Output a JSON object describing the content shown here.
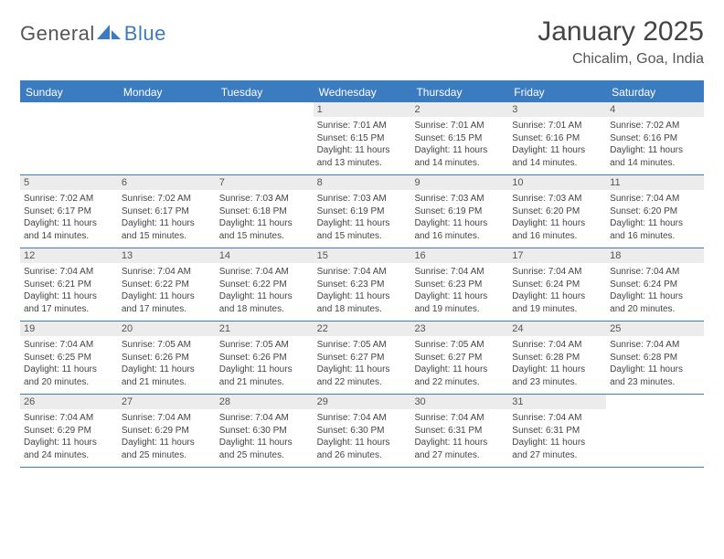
{
  "logo": {
    "text1": "General",
    "text2": "Blue"
  },
  "title": "January 2025",
  "location": "Chicalim, Goa, India",
  "colors": {
    "accent": "#3b7bbf",
    "header_bg": "#3b7bbf",
    "daynum_bg": "#ececec"
  },
  "day_headers": [
    "Sunday",
    "Monday",
    "Tuesday",
    "Wednesday",
    "Thursday",
    "Friday",
    "Saturday"
  ],
  "weeks": [
    [
      {
        "n": "",
        "lines": [
          "",
          "",
          "",
          ""
        ]
      },
      {
        "n": "",
        "lines": [
          "",
          "",
          "",
          ""
        ]
      },
      {
        "n": "",
        "lines": [
          "",
          "",
          "",
          ""
        ]
      },
      {
        "n": "1",
        "lines": [
          "Sunrise: 7:01 AM",
          "Sunset: 6:15 PM",
          "Daylight: 11 hours",
          "and 13 minutes."
        ]
      },
      {
        "n": "2",
        "lines": [
          "Sunrise: 7:01 AM",
          "Sunset: 6:15 PM",
          "Daylight: 11 hours",
          "and 14 minutes."
        ]
      },
      {
        "n": "3",
        "lines": [
          "Sunrise: 7:01 AM",
          "Sunset: 6:16 PM",
          "Daylight: 11 hours",
          "and 14 minutes."
        ]
      },
      {
        "n": "4",
        "lines": [
          "Sunrise: 7:02 AM",
          "Sunset: 6:16 PM",
          "Daylight: 11 hours",
          "and 14 minutes."
        ]
      }
    ],
    [
      {
        "n": "5",
        "lines": [
          "Sunrise: 7:02 AM",
          "Sunset: 6:17 PM",
          "Daylight: 11 hours",
          "and 14 minutes."
        ]
      },
      {
        "n": "6",
        "lines": [
          "Sunrise: 7:02 AM",
          "Sunset: 6:17 PM",
          "Daylight: 11 hours",
          "and 15 minutes."
        ]
      },
      {
        "n": "7",
        "lines": [
          "Sunrise: 7:03 AM",
          "Sunset: 6:18 PM",
          "Daylight: 11 hours",
          "and 15 minutes."
        ]
      },
      {
        "n": "8",
        "lines": [
          "Sunrise: 7:03 AM",
          "Sunset: 6:19 PM",
          "Daylight: 11 hours",
          "and 15 minutes."
        ]
      },
      {
        "n": "9",
        "lines": [
          "Sunrise: 7:03 AM",
          "Sunset: 6:19 PM",
          "Daylight: 11 hours",
          "and 16 minutes."
        ]
      },
      {
        "n": "10",
        "lines": [
          "Sunrise: 7:03 AM",
          "Sunset: 6:20 PM",
          "Daylight: 11 hours",
          "and 16 minutes."
        ]
      },
      {
        "n": "11",
        "lines": [
          "Sunrise: 7:04 AM",
          "Sunset: 6:20 PM",
          "Daylight: 11 hours",
          "and 16 minutes."
        ]
      }
    ],
    [
      {
        "n": "12",
        "lines": [
          "Sunrise: 7:04 AM",
          "Sunset: 6:21 PM",
          "Daylight: 11 hours",
          "and 17 minutes."
        ]
      },
      {
        "n": "13",
        "lines": [
          "Sunrise: 7:04 AM",
          "Sunset: 6:22 PM",
          "Daylight: 11 hours",
          "and 17 minutes."
        ]
      },
      {
        "n": "14",
        "lines": [
          "Sunrise: 7:04 AM",
          "Sunset: 6:22 PM",
          "Daylight: 11 hours",
          "and 18 minutes."
        ]
      },
      {
        "n": "15",
        "lines": [
          "Sunrise: 7:04 AM",
          "Sunset: 6:23 PM",
          "Daylight: 11 hours",
          "and 18 minutes."
        ]
      },
      {
        "n": "16",
        "lines": [
          "Sunrise: 7:04 AM",
          "Sunset: 6:23 PM",
          "Daylight: 11 hours",
          "and 19 minutes."
        ]
      },
      {
        "n": "17",
        "lines": [
          "Sunrise: 7:04 AM",
          "Sunset: 6:24 PM",
          "Daylight: 11 hours",
          "and 19 minutes."
        ]
      },
      {
        "n": "18",
        "lines": [
          "Sunrise: 7:04 AM",
          "Sunset: 6:24 PM",
          "Daylight: 11 hours",
          "and 20 minutes."
        ]
      }
    ],
    [
      {
        "n": "19",
        "lines": [
          "Sunrise: 7:04 AM",
          "Sunset: 6:25 PM",
          "Daylight: 11 hours",
          "and 20 minutes."
        ]
      },
      {
        "n": "20",
        "lines": [
          "Sunrise: 7:05 AM",
          "Sunset: 6:26 PM",
          "Daylight: 11 hours",
          "and 21 minutes."
        ]
      },
      {
        "n": "21",
        "lines": [
          "Sunrise: 7:05 AM",
          "Sunset: 6:26 PM",
          "Daylight: 11 hours",
          "and 21 minutes."
        ]
      },
      {
        "n": "22",
        "lines": [
          "Sunrise: 7:05 AM",
          "Sunset: 6:27 PM",
          "Daylight: 11 hours",
          "and 22 minutes."
        ]
      },
      {
        "n": "23",
        "lines": [
          "Sunrise: 7:05 AM",
          "Sunset: 6:27 PM",
          "Daylight: 11 hours",
          "and 22 minutes."
        ]
      },
      {
        "n": "24",
        "lines": [
          "Sunrise: 7:04 AM",
          "Sunset: 6:28 PM",
          "Daylight: 11 hours",
          "and 23 minutes."
        ]
      },
      {
        "n": "25",
        "lines": [
          "Sunrise: 7:04 AM",
          "Sunset: 6:28 PM",
          "Daylight: 11 hours",
          "and 23 minutes."
        ]
      }
    ],
    [
      {
        "n": "26",
        "lines": [
          "Sunrise: 7:04 AM",
          "Sunset: 6:29 PM",
          "Daylight: 11 hours",
          "and 24 minutes."
        ]
      },
      {
        "n": "27",
        "lines": [
          "Sunrise: 7:04 AM",
          "Sunset: 6:29 PM",
          "Daylight: 11 hours",
          "and 25 minutes."
        ]
      },
      {
        "n": "28",
        "lines": [
          "Sunrise: 7:04 AM",
          "Sunset: 6:30 PM",
          "Daylight: 11 hours",
          "and 25 minutes."
        ]
      },
      {
        "n": "29",
        "lines": [
          "Sunrise: 7:04 AM",
          "Sunset: 6:30 PM",
          "Daylight: 11 hours",
          "and 26 minutes."
        ]
      },
      {
        "n": "30",
        "lines": [
          "Sunrise: 7:04 AM",
          "Sunset: 6:31 PM",
          "Daylight: 11 hours",
          "and 27 minutes."
        ]
      },
      {
        "n": "31",
        "lines": [
          "Sunrise: 7:04 AM",
          "Sunset: 6:31 PM",
          "Daylight: 11 hours",
          "and 27 minutes."
        ]
      },
      {
        "n": "",
        "lines": [
          "",
          "",
          "",
          ""
        ]
      }
    ]
  ]
}
